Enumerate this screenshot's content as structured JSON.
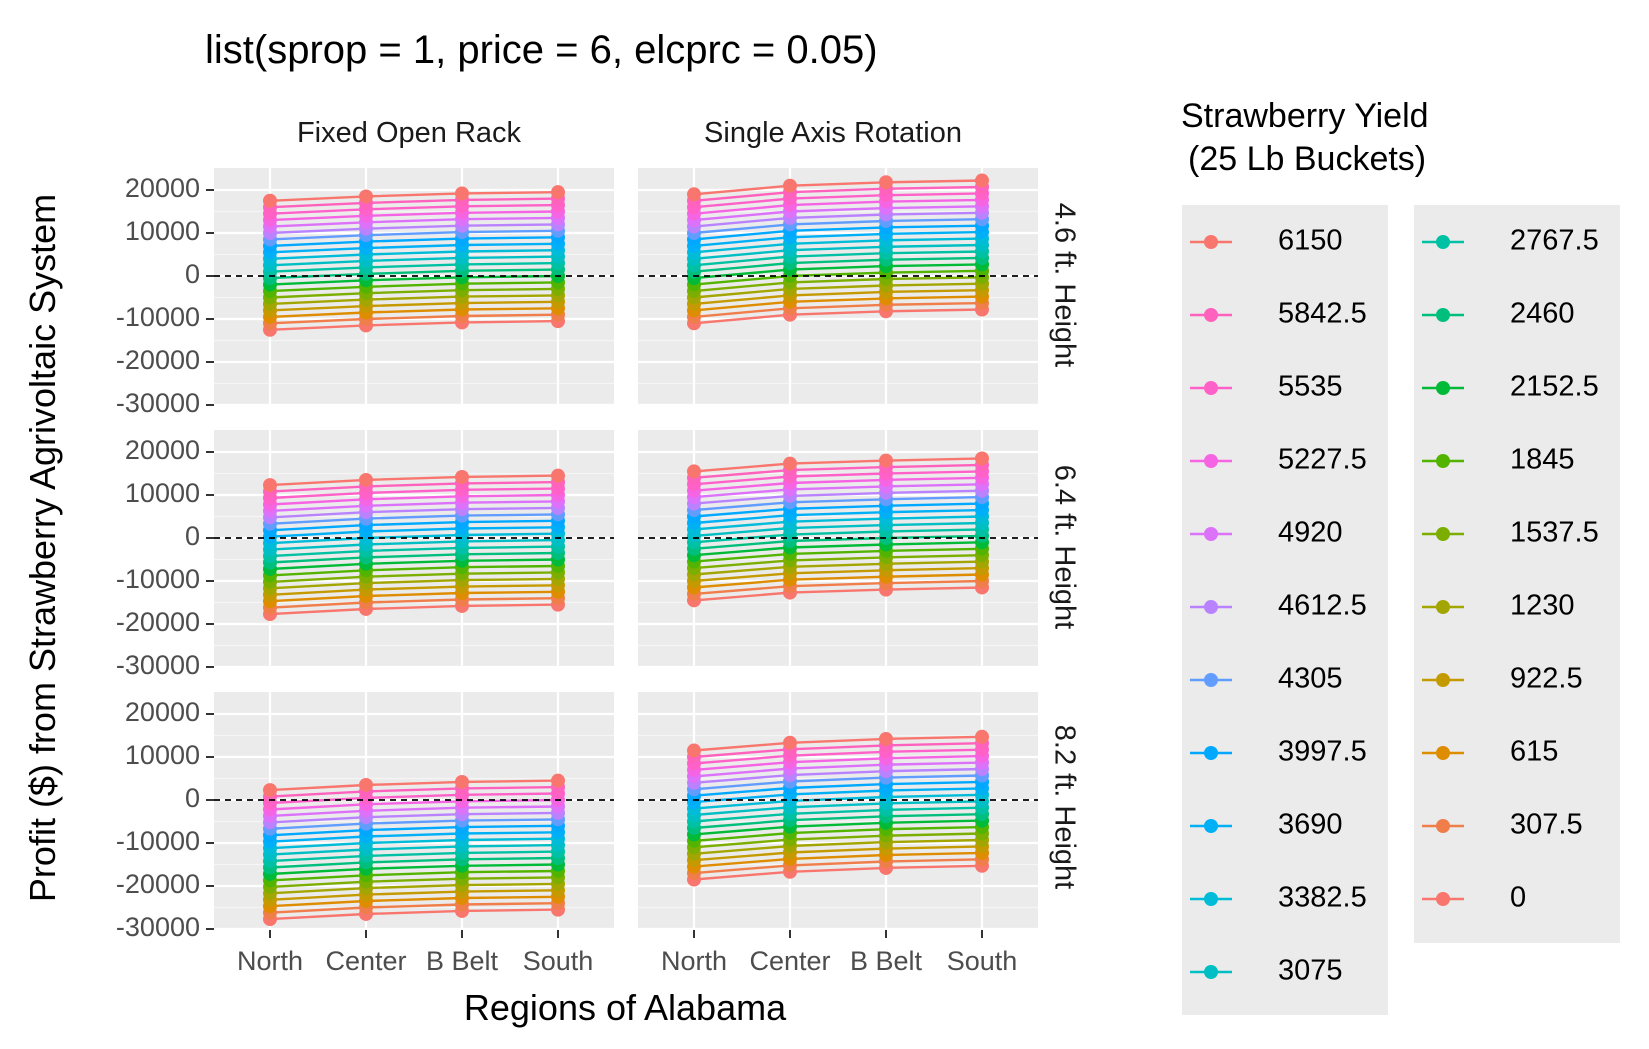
{
  "chart_data": {
    "type": "line",
    "title": "list(sprop = 1, price = 6, elcprc = 0.05)",
    "xlabel": "Regions of Alabama",
    "ylabel": "Profit ($) from Strawberry Agrivoltaic System",
    "categories": [
      "North",
      "Center",
      "B Belt",
      "South"
    ],
    "ylim": [
      -30000,
      20000
    ],
    "yticks": [
      20000,
      10000,
      0,
      -10000,
      -20000,
      -30000
    ],
    "yticklabels": [
      "20000",
      "10000",
      "0",
      "-10000",
      "-20000",
      "-30000"
    ],
    "hline": 0,
    "grid": true,
    "columns": [
      "Fixed Open Rack",
      "Single Axis Rotation"
    ],
    "rows": [
      "4.6 ft. Height",
      "6.4 ft. Height",
      "8.2 ft. Height"
    ],
    "legend": {
      "title_lines": [
        "Strawberry Yield",
        "(25 Lb Buckets)"
      ],
      "placement": "right",
      "items": [
        {
          "label": "6150",
          "color": "#F8766D"
        },
        {
          "label": "5842.5",
          "color": "#FF62BC"
        },
        {
          "label": "5535",
          "color": "#FF61C9"
        },
        {
          "label": "5227.5",
          "color": "#F564E3"
        },
        {
          "label": "4920",
          "color": "#DC71FA"
        },
        {
          "label": "4612.5",
          "color": "#B983FF"
        },
        {
          "label": "4305",
          "color": "#619CFF"
        },
        {
          "label": "3997.5",
          "color": "#00A9FF"
        },
        {
          "label": "3690",
          "color": "#00B0F6"
        },
        {
          "label": "3382.5",
          "color": "#00BCD8"
        },
        {
          "label": "3075",
          "color": "#00BFC4"
        },
        {
          "label": "2767.5",
          "color": "#00C1A3"
        },
        {
          "label": "2460",
          "color": "#00BF7D"
        },
        {
          "label": "2152.5",
          "color": "#00BA38"
        },
        {
          "label": "1845",
          "color": "#53B400"
        },
        {
          "label": "1537.5",
          "color": "#7CAE00"
        },
        {
          "label": "1230",
          "color": "#A3A500"
        },
        {
          "label": "922.5",
          "color": "#C49A00"
        },
        {
          "label": "615",
          "color": "#DE8C00"
        },
        {
          "label": "307.5",
          "color": "#F07E4B"
        },
        {
          "label": "0",
          "color": "#F8766D"
        }
      ]
    },
    "series_note": "Each panel: 21 series (yield 6150 down to 0, step 307.5); profit values linear in yield between panel min (yield 0) and max (yield 6150) per region",
    "panels": [
      {
        "column": "Fixed Open Rack",
        "row": "4.6 ft. Height",
        "max": [
          17500,
          18500,
          19200,
          19500
        ],
        "min": [
          -12500,
          -11500,
          -10800,
          -10500
        ]
      },
      {
        "column": "Single Axis Rotation",
        "row": "4.6 ft. Height",
        "max": [
          19000,
          21000,
          21800,
          22200
        ],
        "min": [
          -11000,
          -9000,
          -8200,
          -7800
        ]
      },
      {
        "column": "Fixed Open Rack",
        "row": "6.4 ft. Height",
        "max": [
          12300,
          13500,
          14200,
          14500
        ],
        "min": [
          -17700,
          -16500,
          -15800,
          -15500
        ]
      },
      {
        "column": "Single Axis Rotation",
        "row": "6.4 ft. Height",
        "max": [
          15500,
          17300,
          18000,
          18500
        ],
        "min": [
          -14500,
          -12700,
          -12000,
          -11500
        ]
      },
      {
        "column": "Fixed Open Rack",
        "row": "8.2 ft. Height",
        "max": [
          2300,
          3500,
          4200,
          4500
        ],
        "min": [
          -27700,
          -26500,
          -25800,
          -25500
        ]
      },
      {
        "column": "Single Axis Rotation",
        "row": "8.2 ft. Height",
        "max": [
          11500,
          13300,
          14200,
          14700
        ],
        "min": [
          -18500,
          -16700,
          -15800,
          -15300
        ]
      }
    ]
  }
}
